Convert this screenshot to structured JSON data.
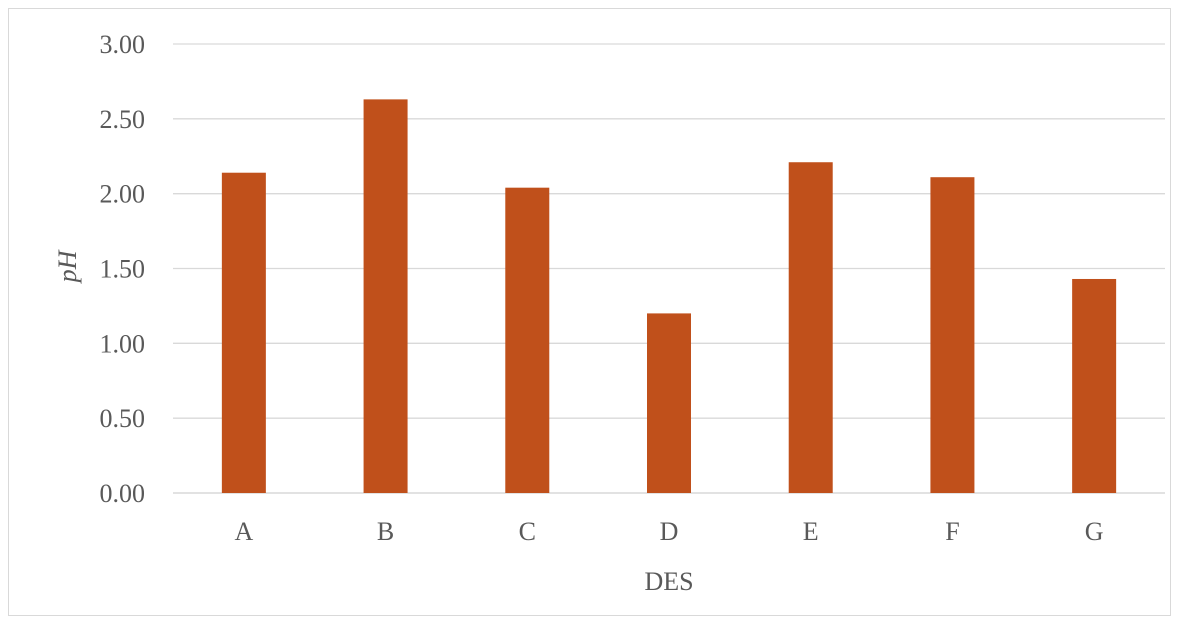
{
  "chart_data": {
    "type": "bar",
    "categories": [
      "A",
      "B",
      "C",
      "D",
      "E",
      "F",
      "G"
    ],
    "values": [
      2.14,
      2.63,
      2.04,
      1.2,
      2.21,
      2.11,
      1.43
    ],
    "title": "",
    "xlabel": "DES",
    "ylabel": "pH",
    "ylim": [
      0,
      3
    ],
    "yticks": [
      "0.00",
      "0.50",
      "1.00",
      "1.50",
      "2.00",
      "2.50",
      "3.00"
    ],
    "grid": true,
    "bar_color": "#c0504d",
    "legend": "none"
  }
}
